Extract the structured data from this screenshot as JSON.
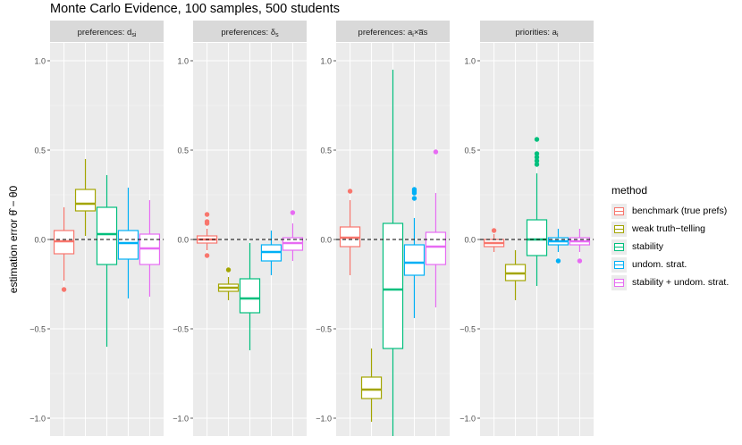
{
  "chart_data": {
    "type": "boxplot",
    "title": "Monte Carlo Evidence, 100 samples, 500 students",
    "ylabel": "estimation error θ̂ − θ0",
    "ylim": [
      -1.1,
      1.1
    ],
    "yticks": [
      -1.0,
      -0.5,
      0.0,
      0.5,
      1.0
    ],
    "ytick_labels": [
      "−1.0",
      "−0.5",
      "0.0",
      "0.5",
      "1.0"
    ],
    "reference_line": 0.0,
    "legend": {
      "title": "method",
      "placement": "right",
      "entries": [
        {
          "label": "benchmark (true prefs)",
          "color": "#F8766D"
        },
        {
          "label": "weak truth−telling",
          "color": "#A3A500"
        },
        {
          "label": "stability",
          "color": "#00BF7D"
        },
        {
          "label": "undom. strat.",
          "color": "#00B0F6"
        },
        {
          "label": "stability + undom. strat.",
          "color": "#E76BF3"
        }
      ]
    },
    "panels": [
      {
        "label_main": "preferences: d",
        "label_sub": "si",
        "label_tail": "",
        "boxes": [
          {
            "method": "benchmark (true prefs)",
            "whisker_low": -0.23,
            "q1": -0.08,
            "median": -0.01,
            "q3": 0.05,
            "whisker_high": 0.18,
            "outliers": [
              -0.28
            ]
          },
          {
            "method": "weak truth−telling",
            "whisker_low": 0.02,
            "q1": 0.16,
            "median": 0.2,
            "q3": 0.28,
            "whisker_high": 0.45,
            "outliers": []
          },
          {
            "method": "stability",
            "whisker_low": -0.6,
            "q1": -0.14,
            "median": 0.03,
            "q3": 0.18,
            "whisker_high": 0.36,
            "outliers": []
          },
          {
            "method": "undom. strat.",
            "whisker_low": -0.33,
            "q1": -0.11,
            "median": -0.02,
            "q3": 0.05,
            "whisker_high": 0.29,
            "outliers": []
          },
          {
            "method": "stability + undom. strat.",
            "whisker_low": -0.32,
            "q1": -0.14,
            "median": -0.05,
            "q3": 0.03,
            "whisker_high": 0.22,
            "outliers": []
          }
        ]
      },
      {
        "label_main": "preferences: δ",
        "label_sub": "s",
        "label_tail": "",
        "boxes": [
          {
            "method": "benchmark (true prefs)",
            "whisker_low": -0.06,
            "q1": -0.02,
            "median": 0.0,
            "q3": 0.02,
            "whisker_high": 0.06,
            "outliers": [
              0.14,
              0.1,
              0.09,
              -0.09
            ]
          },
          {
            "method": "weak truth−telling",
            "whisker_low": -0.34,
            "q1": -0.29,
            "median": -0.27,
            "q3": -0.25,
            "whisker_high": -0.21,
            "outliers": [
              -0.17
            ]
          },
          {
            "method": "stability",
            "whisker_low": -0.62,
            "q1": -0.41,
            "median": -0.33,
            "q3": -0.22,
            "whisker_high": -0.02,
            "outliers": []
          },
          {
            "method": "undom. strat.",
            "whisker_low": -0.2,
            "q1": -0.12,
            "median": -0.07,
            "q3": -0.03,
            "whisker_high": 0.05,
            "outliers": []
          },
          {
            "method": "stability + undom. strat.",
            "whisker_low": -0.12,
            "q1": -0.06,
            "median": -0.02,
            "q3": 0.01,
            "whisker_high": 0.09,
            "outliers": [
              0.15
            ]
          }
        ]
      },
      {
        "label_main": "preferences: a",
        "label_sub": "i",
        "label_tail": "×a̅s",
        "boxes": [
          {
            "method": "benchmark (true prefs)",
            "whisker_low": -0.2,
            "q1": -0.04,
            "median": 0.01,
            "q3": 0.07,
            "whisker_high": 0.22,
            "outliers": [
              0.27
            ]
          },
          {
            "method": "weak truth−telling",
            "whisker_low": -1.02,
            "q1": -0.89,
            "median": -0.84,
            "q3": -0.77,
            "whisker_high": -0.61,
            "outliers": []
          },
          {
            "method": "stability",
            "whisker_low": -1.1,
            "q1": -0.61,
            "median": -0.28,
            "q3": 0.09,
            "whisker_high": 0.95,
            "outliers": []
          },
          {
            "method": "undom. strat.",
            "whisker_low": -0.44,
            "q1": -0.2,
            "median": -0.13,
            "q3": -0.03,
            "whisker_high": 0.12,
            "outliers": [
              0.28,
              0.27,
              0.26,
              0.23
            ]
          },
          {
            "method": "stability + undom. strat.",
            "whisker_low": -0.38,
            "q1": -0.14,
            "median": -0.04,
            "q3": 0.04,
            "whisker_high": 0.26,
            "outliers": [
              0.49
            ]
          }
        ]
      },
      {
        "label_main": "priorities: a",
        "label_sub": "i",
        "label_tail": "",
        "boxes": [
          {
            "method": "benchmark (true prefs)",
            "whisker_low": -0.07,
            "q1": -0.04,
            "median": -0.02,
            "q3": 0.0,
            "whisker_high": 0.03,
            "outliers": [
              0.05
            ]
          },
          {
            "method": "weak truth−telling",
            "whisker_low": -0.34,
            "q1": -0.23,
            "median": -0.19,
            "q3": -0.14,
            "whisker_high": -0.06,
            "outliers": []
          },
          {
            "method": "stability",
            "whisker_low": -0.26,
            "q1": -0.09,
            "median": 0.0,
            "q3": 0.11,
            "whisker_high": 0.37,
            "outliers": [
              0.56,
              0.48,
              0.46,
              0.44,
              0.42
            ]
          },
          {
            "method": "undom. strat.",
            "whisker_low": -0.07,
            "q1": -0.03,
            "median": -0.01,
            "q3": 0.01,
            "whisker_high": 0.06,
            "outliers": [
              -0.12
            ]
          },
          {
            "method": "stability + undom. strat.",
            "whisker_low": -0.07,
            "q1": -0.03,
            "median": -0.01,
            "q3": 0.01,
            "whisker_high": 0.06,
            "outliers": [
              -0.12
            ]
          }
        ]
      }
    ]
  }
}
